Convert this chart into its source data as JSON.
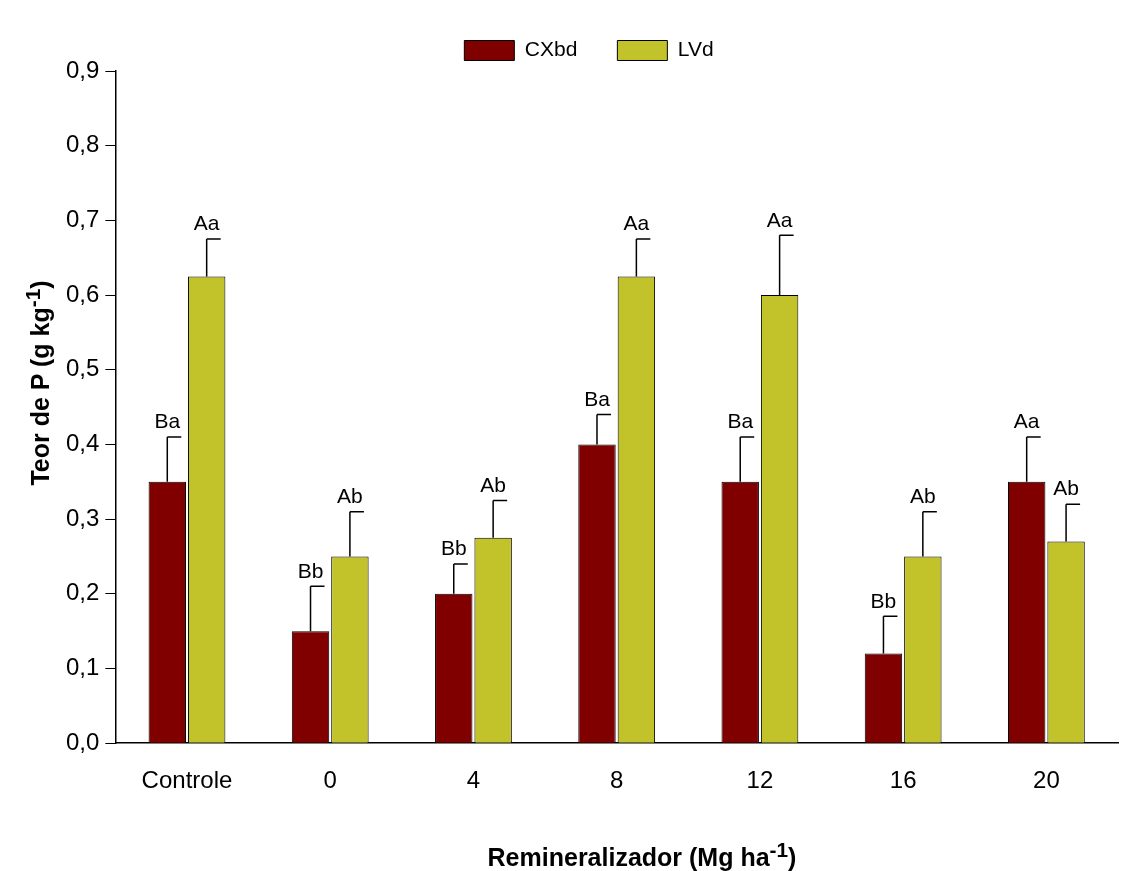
{
  "chart_data": {
    "type": "bar",
    "xlabel": "Remineralizador (Mg ha$^{-1}$)",
    "ylabel": "Teor de P (g kg$^{-1}$)",
    "categories": [
      "Controle",
      "0",
      "4",
      "8",
      "12",
      "16",
      "20"
    ],
    "series": [
      {
        "name": "CXbd",
        "color": "#800000",
        "values": [
          0.35,
          0.15,
          0.2,
          0.4,
          0.35,
          0.12,
          0.35
        ],
        "errors": [
          [
            0.35,
            0.41
          ],
          [
            0.15,
            0.21
          ],
          [
            0.2,
            0.24
          ],
          [
            0.4,
            0.44
          ],
          [
            0.35,
            0.41
          ],
          [
            0.12,
            0.17
          ],
          [
            0.35,
            0.41
          ]
        ],
        "value_labels": [
          "Ba",
          "Bb",
          "Bb",
          "Ba",
          "Ba",
          "Bb",
          "Aa"
        ]
      },
      {
        "name": "LVd",
        "color": "#c2c22a",
        "values": [
          0.625,
          0.25,
          0.275,
          0.625,
          0.6,
          0.25,
          0.27
        ],
        "errors": [
          [
            0.625,
            0.675
          ],
          [
            0.25,
            0.31
          ],
          [
            0.275,
            0.325
          ],
          [
            0.625,
            0.675
          ],
          [
            0.6,
            0.68
          ],
          [
            0.25,
            0.31
          ],
          [
            0.27,
            0.32
          ]
        ],
        "value_labels": [
          "Aa",
          "Ab",
          "Ab",
          "Aa",
          "Aa",
          "Ab",
          "Ab"
        ]
      }
    ],
    "ylim": [
      0,
      0.9
    ],
    "yticks": [
      {
        "value": 0,
        "label": "0,0"
      },
      {
        "value": 0.1,
        "label": "0,1"
      },
      {
        "value": 0.2,
        "label": "0,2"
      },
      {
        "value": 0.3,
        "label": "0,3"
      },
      {
        "value": 0.4,
        "label": "0,4"
      },
      {
        "value": 0.5,
        "label": "0,5"
      },
      {
        "value": 0.6,
        "label": "0,6"
      },
      {
        "value": 0.7,
        "label": "0,7"
      },
      {
        "value": 0.8,
        "label": "0,8"
      },
      {
        "value": 0.9,
        "label": "0,9"
      }
    ],
    "grid": false,
    "legend": "top"
  }
}
